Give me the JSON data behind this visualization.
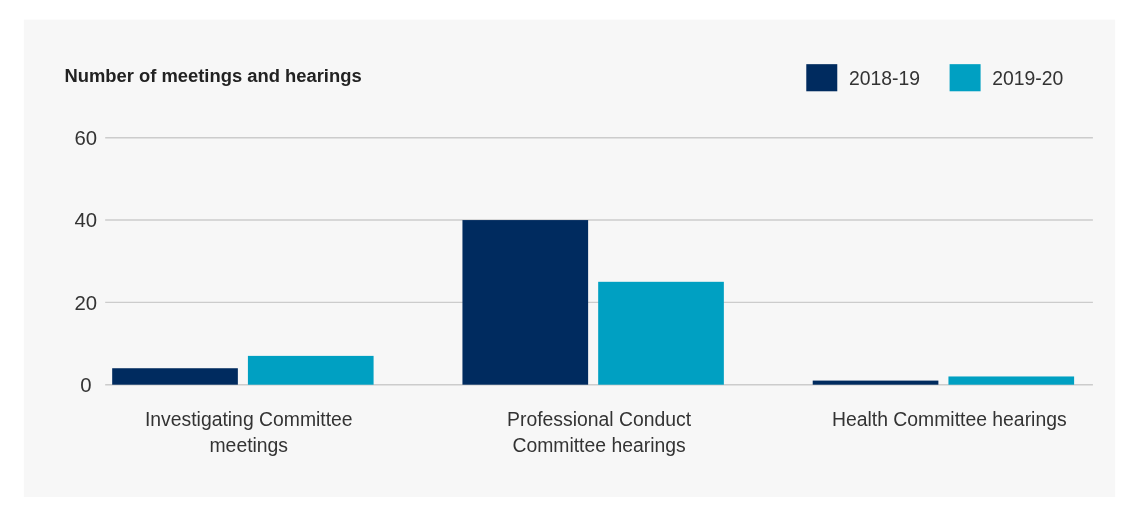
{
  "chart_data": {
    "type": "bar",
    "title": "Number of meetings and hearings",
    "categories": [
      "Investigating Committee meetings",
      "Professional Conduct Committee hearings",
      "Health Committee hearings"
    ],
    "series": [
      {
        "name": "2018-19",
        "color": "#002b5f",
        "values": [
          4,
          40,
          1
        ]
      },
      {
        "name": "2019-20",
        "color": "#00a0c2",
        "values": [
          7,
          25,
          2
        ]
      }
    ],
    "ylim": [
      0,
      60
    ],
    "yticks": [
      0,
      20,
      40,
      60
    ],
    "grid": "y",
    "legend": "top right"
  }
}
